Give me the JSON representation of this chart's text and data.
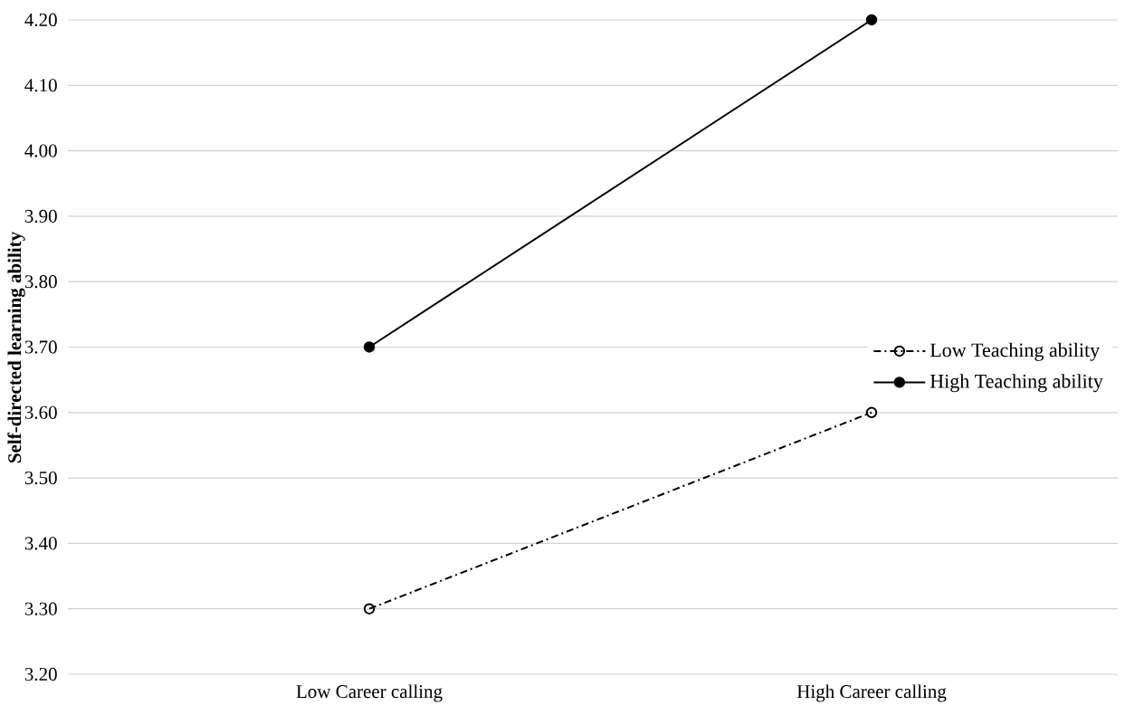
{
  "chart_data": {
    "type": "line",
    "ylabel": "Self-directed learning ability",
    "categories": [
      "Low Career calling",
      "High  Career calling"
    ],
    "series": [
      {
        "name": "Low Teaching ability",
        "color": "#000000",
        "values": [
          3.3,
          3.6
        ],
        "line_style": "dashdot",
        "marker": "open circle"
      },
      {
        "name": "High Teaching ability",
        "color": "#000000",
        "values": [
          3.7,
          4.2
        ],
        "line_style": "solid",
        "marker": "circle"
      }
    ],
    "ylim": [
      3.2,
      4.2
    ],
    "yticks": [
      {
        "value": 3.2,
        "label": "3.20"
      },
      {
        "value": 3.3,
        "label": "3.30"
      },
      {
        "value": 3.4,
        "label": "3.40"
      },
      {
        "value": 3.5,
        "label": "3.50"
      },
      {
        "value": 3.6,
        "label": "3.60"
      },
      {
        "value": 3.7,
        "label": "3.70"
      },
      {
        "value": 3.8,
        "label": "3.80"
      },
      {
        "value": 3.9,
        "label": "3.90"
      },
      {
        "value": 4.0,
        "label": "4.00"
      },
      {
        "value": 4.1,
        "label": "4.10"
      },
      {
        "value": 4.2,
        "label": "4.20"
      }
    ],
    "grid": "y",
    "legend": "right"
  }
}
